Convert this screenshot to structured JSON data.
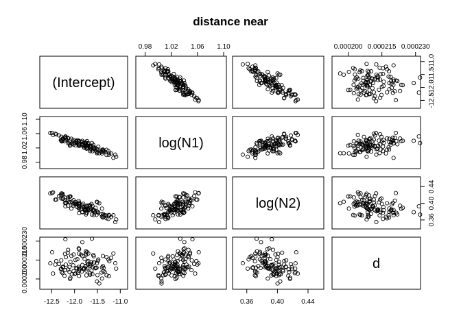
{
  "chart_data": {
    "type": "scatter",
    "layout": "pairs-matrix",
    "title": "distance near",
    "variables": [
      "(Intercept)",
      "log(N1)",
      "log(N2)",
      "d"
    ],
    "axes": {
      "(Intercept)": {
        "range": [
          -12.7,
          -10.9
        ],
        "ticks": [
          -12.5,
          -12.0,
          -11.5,
          -11.0
        ],
        "tick_labels": [
          "-12.5",
          "-12.0",
          "-11.5",
          "-11.0"
        ]
      },
      "log(N1)": {
        "range": [
          0.97,
          1.1
        ],
        "ticks": [
          0.98,
          1.02,
          1.06,
          1.1
        ],
        "tick_labels": [
          "0.98",
          "1.02",
          "1.06",
          "1.10"
        ]
      },
      "log(N2)": {
        "range": [
          0.345,
          0.457
        ],
        "ticks": [
          0.36,
          0.4,
          0.44
        ],
        "tick_labels": [
          "0.36",
          "0.40",
          "0.44"
        ]
      },
      "d": {
        "range": [
          0.000194,
          0.000231
        ],
        "ticks": [
          0.0002,
          0.000215,
          0.00023
        ],
        "tick_labels": [
          "0.000200",
          "0.000215",
          "0.000230"
        ]
      }
    },
    "points": {
      "(Intercept)": [
        -11.95,
        -12.2,
        -12.06,
        -11.15,
        -11.2,
        -11.52,
        -11.74,
        -12.34,
        -11.75,
        -11.76,
        -11.59,
        -11.3,
        -11.96,
        -11.3,
        -12.0,
        -12.07,
        -12.47,
        -11.78,
        -11.66,
        -11.51,
        -11.6,
        -11.58,
        -12.26,
        -11.63,
        -12.02,
        -11.49,
        -12.11,
        -11.7,
        -12.29,
        -12.15,
        -11.62,
        -12.02,
        -11.7,
        -11.34,
        -11.26,
        -11.7,
        -11.75,
        -12.28,
        -11.46,
        -11.9,
        -12.3,
        -11.58,
        -12.19,
        -12.21,
        -11.91,
        -11.83,
        -11.55,
        -11.81,
        -11.76,
        -12.14,
        -12.29,
        -11.57,
        -11.91,
        -11.5,
        -12.22,
        -12.53,
        -11.9,
        -12.2,
        -11.61,
        -11.65,
        -11.38,
        -11.9,
        -11.38,
        -12.26,
        -11.75,
        -12.49,
        -12.09,
        -11.48,
        -11.79,
        -11.9,
        -11.51,
        -11.83,
        -12.4,
        -11.54,
        -11.11,
        -11.72,
        -11.86,
        -11.66,
        -11.37,
        -11.74,
        -12.42,
        -12.14,
        -12.1,
        -12.26,
        -11.98,
        -11.79,
        -12.03,
        -11.25,
        -11.09,
        -11.98,
        -11.89,
        -11.92,
        -11.66,
        -11.9,
        -11.41,
        -12.09,
        -11.83,
        -11.66,
        -11.24,
        -11.36,
        -11.4,
        -11.4,
        -11.84,
        -11.94,
        -12.11,
        -12.19,
        -11.73,
        -11.63,
        -11.72,
        -12.25
      ],
      "log(N1)": [
        1.0328,
        1.0508,
        1.0317,
        0.9923,
        1.0048,
        1.0108,
        1.018,
        1.0549,
        1.0302,
        1.0239,
        1.0287,
        1.0004,
        1.0386,
        1.0149,
        1.0335,
        1.0458,
        1.0565,
        1.0344,
        1.0162,
        1.0166,
        1.0191,
        1.0222,
        1.0449,
        1.0153,
        1.0294,
        1.0155,
        1.0375,
        1.0335,
        1.0512,
        1.0487,
        1.0337,
        1.0424,
        1.0257,
        1.0092,
        1.0111,
        1.0295,
        1.0327,
        1.0383,
        1.0051,
        1.0304,
        1.0418,
        1.018,
        1.0432,
        1.0487,
        1.0293,
        1.0399,
        1.0201,
        1.0245,
        1.0273,
        1.0332,
        1.0402,
        1.0181,
        1.0402,
        1.0076,
        1.0384,
        1.0615,
        1.0282,
        1.0523,
        1.0108,
        1.0208,
        1.0155,
        1.0388,
        1.0099,
        1.0401,
        1.035,
        1.0619,
        1.0282,
        1.0238,
        1.0264,
        1.0253,
        1.0051,
        1.0368,
        1.0582,
        1.0127,
        1.0013,
        1.0265,
        1.0367,
        1.0111,
        1.0136,
        1.0204,
        1.0596,
        1.0463,
        1.0264,
        1.0442,
        1.038,
        1.0205,
        1.0382,
        1.0007,
        0.9955,
        1.0271,
        1.0303,
        1.0302,
        1.0237,
        1.0388,
        1.0086,
        1.0405,
        1.0294,
        1.0263,
        1.0055,
        1.0105,
        1.0145,
        1.0047,
        1.0311,
        1.0417,
        1.0323,
        1.0467,
        1.0393,
        1.0258,
        1.0222,
        1.0471
      ],
      "log(N2)": [
        0.3975,
        0.4071,
        0.4042,
        0.3712,
        0.3674,
        0.3721,
        0.394,
        0.4175,
        0.3733,
        0.3851,
        0.3821,
        0.3705,
        0.3988,
        0.3639,
        0.3996,
        0.3875,
        0.4265,
        0.3834,
        0.3953,
        0.3806,
        0.3839,
        0.3713,
        0.411,
        0.3985,
        0.4074,
        0.3793,
        0.4035,
        0.3839,
        0.4115,
        0.4062,
        0.3729,
        0.3974,
        0.3947,
        0.3716,
        0.3624,
        0.384,
        0.3769,
        0.4237,
        0.4002,
        0.4015,
        0.4192,
        0.3818,
        0.4018,
        0.4009,
        0.4056,
        0.3786,
        0.3781,
        0.3989,
        0.3858,
        0.4146,
        0.4232,
        0.3837,
        0.3893,
        0.4022,
        0.4142,
        0.4237,
        0.4013,
        0.3928,
        0.3939,
        0.3873,
        0.3658,
        0.3869,
        0.375,
        0.4227,
        0.3839,
        0.4246,
        0.4166,
        0.3771,
        0.3872,
        0.3985,
        0.4037,
        0.3795,
        0.4089,
        0.3889,
        0.3548,
        0.3842,
        0.3853,
        0.3954,
        0.3708,
        0.392,
        0.4087,
        0.3943,
        0.4164,
        0.4189,
        0.3986,
        0.3902,
        0.3937,
        0.3718,
        0.3612,
        0.403,
        0.3929,
        0.3979,
        0.3834,
        0.3764,
        0.3735,
        0.4021,
        0.3921,
        0.3926,
        0.3707,
        0.3674,
        0.3681,
        0.3873,
        0.3962,
        0.3908,
        0.4153,
        0.4002,
        0.3773,
        0.3855,
        0.3877,
        0.411
      ],
      "d": [
        0.0002083,
        0.000207,
        0.0002037,
        0.0002202,
        0.0002168,
        0.0002089,
        0.0002067,
        0.0002119,
        0.0002219,
        0.0002098,
        0.0002189,
        0.0002029,
        0.0002087,
        0.0002173,
        0.0002038,
        0.0002183,
        0.0002043,
        0.0002158,
        0.0002045,
        0.0002126,
        0.0002093,
        0.000218,
        0.0002094,
        0.0002067,
        0.0002062,
        0.0002144,
        0.0002095,
        0.0002202,
        0.0002148,
        0.0002208,
        0.000232,
        0.0002194,
        0.0002118,
        0.0002054,
        0.0002155,
        0.0002142,
        0.0002202,
        0.0002055,
        0.0001964,
        0.0002084,
        0.0002079,
        0.0002131,
        0.0002114,
        0.0002199,
        0.0002096,
        0.0002292,
        0.0002087,
        0.0002078,
        0.0002102,
        0.0002075,
        0.0002082,
        0.000213,
        0.0002243,
        0.000203,
        0.0002025,
        0.0002124,
        0.0002066,
        0.0002315,
        0.0002038,
        0.0002104,
        0.0002182,
        0.0002236,
        0.0002102,
        0.0002046,
        0.0002191,
        0.0002212,
        0.0002009,
        0.0002155,
        0.0002088,
        0.0002024,
        0.000198,
        0.0002183,
        0.0002142,
        0.0002085,
        0.0002125,
        0.0002133,
        0.0002193,
        0.0002033,
        0.0002061,
        0.0002028,
        0.0002114,
        0.0002231,
        0.0002,
        0.0002093,
        0.000215,
        0.0002079,
        0.0002108,
        0.0002022,
        0.0002082,
        0.0002044,
        0.0002077,
        0.0002051,
        0.0002119,
        0.0002201,
        0.0002051,
        0.0002137,
        0.0002111,
        0.0002109,
        0.000214,
        0.0002087,
        0.0002092,
        0.0002003,
        0.0002059,
        0.0002157,
        0.0002055,
        0.0002173,
        0.0002214,
        0.0002132,
        0.0002083,
        0.0002098
      ]
    },
    "grid": false,
    "legend": "none"
  }
}
